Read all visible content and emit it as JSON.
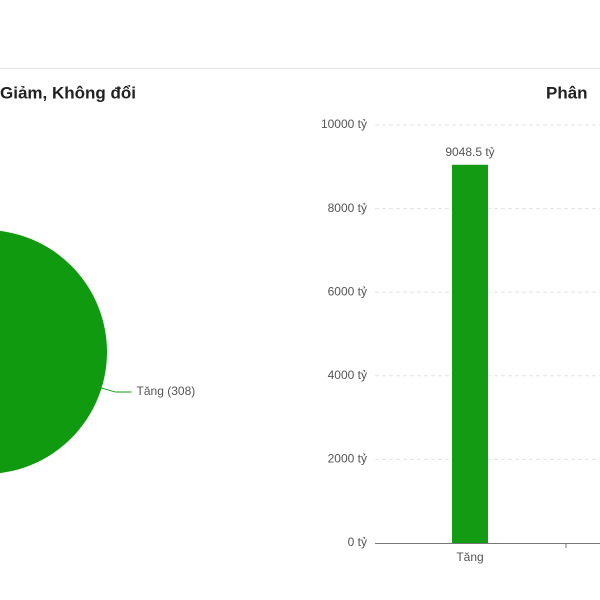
{
  "chart_data": [
    {
      "type": "pie",
      "title": "Giảm, Không đổi",
      "categories": [
        "Tăng"
      ],
      "values": [
        308
      ],
      "value_labels": [
        "Tăng (308)"
      ],
      "colors": [
        "#109a10"
      ]
    },
    {
      "type": "bar",
      "title": "Phân",
      "categories": [
        "Tăng"
      ],
      "values": [
        9048.5
      ],
      "value_labels": [
        "9048.5 tỷ"
      ],
      "color": "#139c13",
      "ylim": [
        0,
        10000
      ],
      "yticks": [
        {
          "value": 0,
          "label": "0 tỷ"
        },
        {
          "value": 2000,
          "label": "2000 tỷ"
        },
        {
          "value": 4000,
          "label": "4000 tỷ"
        },
        {
          "value": 6000,
          "label": "6000 tỷ"
        },
        {
          "value": 8000,
          "label": "8000 tỷ"
        },
        {
          "value": 10000,
          "label": "10000 tỷ"
        }
      ],
      "grid": true
    }
  ]
}
